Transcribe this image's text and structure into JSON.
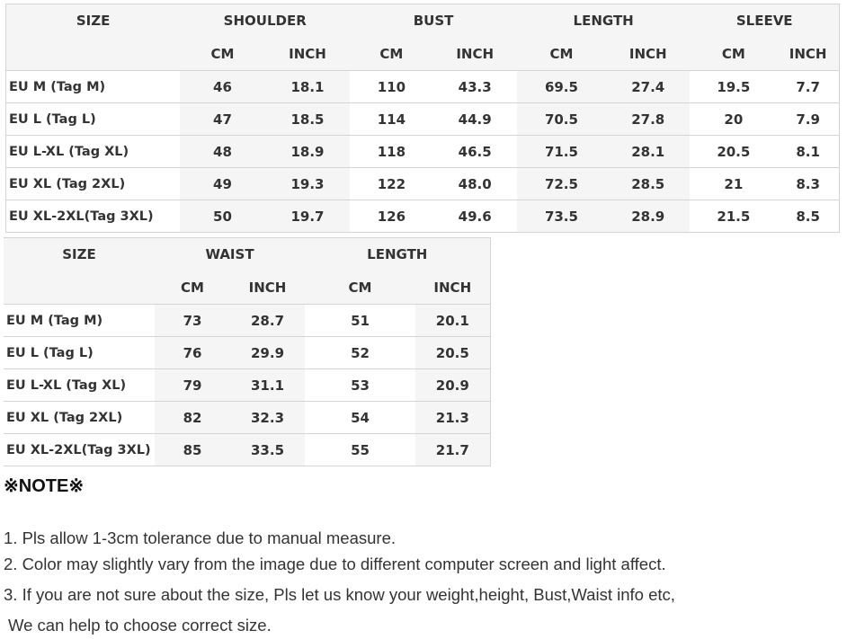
{
  "top_table": {
    "headers": {
      "size": "SIZE",
      "shoulder": "SHOULDER",
      "bust": "BUST",
      "length": "LENGTH",
      "sleeve": "SLEEVE"
    },
    "units": {
      "cm": "CM",
      "inch": "INCH"
    },
    "rows": [
      {
        "size": "EU M (Tag M)",
        "shoulder_cm": "46",
        "shoulder_in": "18.1",
        "bust_cm": "110",
        "bust_in": "43.3",
        "length_cm": "69.5",
        "length_in": "27.4",
        "sleeve_cm": "19.5",
        "sleeve_in": "7.7"
      },
      {
        "size": "EU L (Tag L)",
        "shoulder_cm": "47",
        "shoulder_in": "18.5",
        "bust_cm": "114",
        "bust_in": "44.9",
        "length_cm": "70.5",
        "length_in": "27.8",
        "sleeve_cm": "20",
        "sleeve_in": "7.9"
      },
      {
        "size": "EU L-XL (Tag XL)",
        "shoulder_cm": "48",
        "shoulder_in": "18.9",
        "bust_cm": "118",
        "bust_in": "46.5",
        "length_cm": "71.5",
        "length_in": "28.1",
        "sleeve_cm": "20.5",
        "sleeve_in": "8.1"
      },
      {
        "size": "EU XL (Tag 2XL)",
        "shoulder_cm": "49",
        "shoulder_in": "19.3",
        "bust_cm": "122",
        "bust_in": "48.0",
        "length_cm": "72.5",
        "length_in": "28.5",
        "sleeve_cm": "21",
        "sleeve_in": "8.3"
      },
      {
        "size": "EU XL-2XL(Tag 3XL)",
        "shoulder_cm": "50",
        "shoulder_in": "19.7",
        "bust_cm": "126",
        "bust_in": "49.6",
        "length_cm": "73.5",
        "length_in": "28.9",
        "sleeve_cm": "21.5",
        "sleeve_in": "8.5"
      }
    ]
  },
  "bottom_table": {
    "headers": {
      "size": "SIZE",
      "waist": "WAIST",
      "length": "LENGTH"
    },
    "units": {
      "cm": "CM",
      "inch": "INCH"
    },
    "rows": [
      {
        "size": "EU M (Tag M)",
        "waist_cm": "73",
        "waist_in": "28.7",
        "length_cm": "51",
        "length_in": "20.1"
      },
      {
        "size": "EU L (Tag L)",
        "waist_cm": "76",
        "waist_in": "29.9",
        "length_cm": "52",
        "length_in": "20.5"
      },
      {
        "size": "EU L-XL (Tag XL)",
        "waist_cm": "79",
        "waist_in": "31.1",
        "length_cm": "53",
        "length_in": "20.9"
      },
      {
        "size": "EU XL (Tag 2XL)",
        "waist_cm": "82",
        "waist_in": "32.3",
        "length_cm": "54",
        "length_in": "21.3"
      },
      {
        "size": "EU XL-2XL(Tag 3XL)",
        "waist_cm": "85",
        "waist_in": "33.5",
        "length_cm": "55",
        "length_in": "21.7"
      }
    ]
  },
  "note": {
    "title": "※NOTE※",
    "lines": [
      "1. Pls allow 1-3cm tolerance due to manual measure.",
      "2. Color may slightly vary from the image due to different computer screen and light affect.",
      "3. If you are not sure about the size, Pls let us know your weight,height, Bust,Waist info etc,",
      " We can help to choose correct size."
    ]
  }
}
